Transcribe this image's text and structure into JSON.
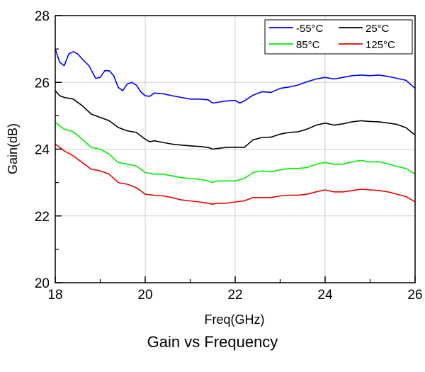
{
  "caption": "Gain vs  Frequency",
  "chart_data": {
    "type": "line",
    "xlabel": "Freq(GHz)",
    "ylabel": "Gain(dB)",
    "xlim": [
      18,
      26
    ],
    "ylim": [
      20,
      28
    ],
    "xticks": [
      18,
      20,
      22,
      24,
      26
    ],
    "yticks": [
      20,
      22,
      24,
      26,
      28
    ],
    "grid": true,
    "legend_position": "top-right",
    "series": [
      {
        "name": "-55°C",
        "color": "#0000ff",
        "x": [
          18,
          18.1,
          18.2,
          18.3,
          18.4,
          18.5,
          18.6,
          18.75,
          18.9,
          19.0,
          19.1,
          19.2,
          19.3,
          19.4,
          19.5,
          19.6,
          19.7,
          19.8,
          19.9,
          20.0,
          20.1,
          20.2,
          20.4,
          20.6,
          20.8,
          21.0,
          21.2,
          21.4,
          21.5,
          21.6,
          21.8,
          22.0,
          22.1,
          22.2,
          22.4,
          22.6,
          22.8,
          23.0,
          23.2,
          23.4,
          23.6,
          23.8,
          24.0,
          24.2,
          24.4,
          24.6,
          24.8,
          25.0,
          25.2,
          25.4,
          25.6,
          25.8,
          26.0
        ],
        "y": [
          27.0,
          26.6,
          26.5,
          26.85,
          26.92,
          26.85,
          26.7,
          26.5,
          26.12,
          26.15,
          26.35,
          26.35,
          26.2,
          25.85,
          25.75,
          25.95,
          26.0,
          25.92,
          25.72,
          25.6,
          25.58,
          25.68,
          25.66,
          25.6,
          25.55,
          25.5,
          25.5,
          25.48,
          25.38,
          25.4,
          25.44,
          25.46,
          25.38,
          25.44,
          25.62,
          25.72,
          25.7,
          25.82,
          25.86,
          25.92,
          26.02,
          26.1,
          26.15,
          26.1,
          26.15,
          26.2,
          26.22,
          26.2,
          26.22,
          26.18,
          26.12,
          26.06,
          25.82
        ]
      },
      {
        "name": "25°C",
        "color": "#000000",
        "x": [
          18,
          18.1,
          18.2,
          18.4,
          18.6,
          18.8,
          19.0,
          19.2,
          19.4,
          19.6,
          19.8,
          20.0,
          20.1,
          20.2,
          20.4,
          20.6,
          20.8,
          21.0,
          21.2,
          21.4,
          21.5,
          21.6,
          21.8,
          22.0,
          22.2,
          22.4,
          22.6,
          22.8,
          23.0,
          23.2,
          23.4,
          23.6,
          23.8,
          24.0,
          24.2,
          24.4,
          24.6,
          24.8,
          25.0,
          25.2,
          25.4,
          25.6,
          25.8,
          26.0
        ],
        "y": [
          25.75,
          25.6,
          25.55,
          25.5,
          25.3,
          25.05,
          24.95,
          24.85,
          24.65,
          24.55,
          24.5,
          24.3,
          24.22,
          24.25,
          24.2,
          24.15,
          24.12,
          24.1,
          24.08,
          24.05,
          24.0,
          24.02,
          24.05,
          24.06,
          24.05,
          24.28,
          24.35,
          24.36,
          24.45,
          24.5,
          24.52,
          24.6,
          24.72,
          24.78,
          24.72,
          24.76,
          24.82,
          24.85,
          24.83,
          24.82,
          24.78,
          24.74,
          24.64,
          24.42
        ]
      },
      {
        "name": "85°C",
        "color": "#00ee00",
        "x": [
          18,
          18.1,
          18.2,
          18.4,
          18.6,
          18.8,
          19.0,
          19.2,
          19.4,
          19.6,
          19.8,
          20.0,
          20.2,
          20.4,
          20.6,
          20.8,
          21.0,
          21.2,
          21.4,
          21.5,
          21.6,
          21.8,
          22.0,
          22.2,
          22.4,
          22.6,
          22.8,
          23.0,
          23.2,
          23.4,
          23.6,
          23.8,
          24.0,
          24.2,
          24.4,
          24.6,
          24.8,
          25.0,
          25.2,
          25.4,
          25.6,
          25.8,
          26.0
        ],
        "y": [
          24.8,
          24.7,
          24.6,
          24.52,
          24.3,
          24.05,
          24.0,
          23.85,
          23.6,
          23.55,
          23.5,
          23.3,
          23.25,
          23.25,
          23.2,
          23.15,
          23.12,
          23.1,
          23.05,
          23.0,
          23.05,
          23.05,
          23.05,
          23.12,
          23.3,
          23.35,
          23.32,
          23.38,
          23.42,
          23.42,
          23.45,
          23.55,
          23.6,
          23.55,
          23.55,
          23.62,
          23.66,
          23.62,
          23.62,
          23.56,
          23.48,
          23.42,
          23.25
        ]
      },
      {
        "name": "125°C",
        "color": "#ee0000",
        "x": [
          18,
          18.1,
          18.2,
          18.4,
          18.6,
          18.8,
          19.0,
          19.2,
          19.4,
          19.6,
          19.8,
          20.0,
          20.2,
          20.4,
          20.6,
          20.8,
          21.0,
          21.2,
          21.4,
          21.5,
          21.6,
          21.8,
          22.0,
          22.2,
          22.4,
          22.6,
          22.8,
          23.0,
          23.2,
          23.4,
          23.6,
          23.8,
          24.0,
          24.2,
          24.4,
          24.6,
          24.8,
          25.0,
          25.2,
          25.4,
          25.6,
          25.8,
          26.0
        ],
        "y": [
          24.15,
          24.05,
          23.95,
          23.8,
          23.6,
          23.4,
          23.35,
          23.25,
          23.0,
          22.95,
          22.85,
          22.65,
          22.62,
          22.6,
          22.55,
          22.48,
          22.45,
          22.42,
          22.38,
          22.35,
          22.38,
          22.38,
          22.42,
          22.45,
          22.55,
          22.55,
          22.55,
          22.6,
          22.62,
          22.62,
          22.65,
          22.72,
          22.78,
          22.72,
          22.72,
          22.76,
          22.8,
          22.78,
          22.76,
          22.72,
          22.65,
          22.58,
          22.42
        ]
      }
    ]
  }
}
